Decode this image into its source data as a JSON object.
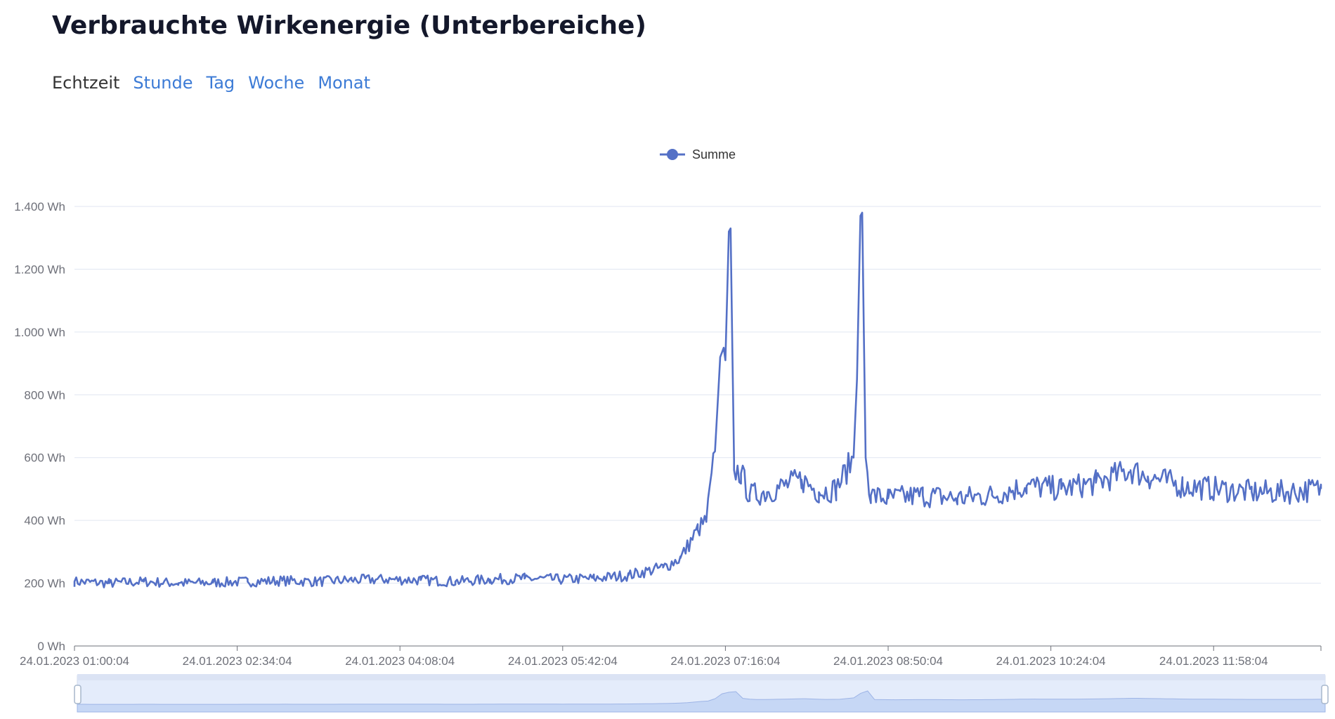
{
  "header": {
    "title": "Verbrauchte Wirkenergie (Unterbereiche)"
  },
  "tabs": [
    {
      "label": "Echtzeit",
      "active": true
    },
    {
      "label": "Stunde",
      "active": false
    },
    {
      "label": "Tag",
      "active": false
    },
    {
      "label": "Woche",
      "active": false
    },
    {
      "label": "Monat",
      "active": false
    }
  ],
  "colors": {
    "series": "#5470c6",
    "link": "#3c7bd6",
    "title": "#14182b"
  },
  "chart_data": {
    "type": "line",
    "title": "",
    "xlabel": "",
    "ylabel": "",
    "ylim": [
      0,
      1400
    ],
    "y_ticks": [
      "0 Wh",
      "200 Wh",
      "400 Wh",
      "600 Wh",
      "800 Wh",
      "1.000 Wh",
      "1.200 Wh",
      "1.400 Wh"
    ],
    "y_tick_values": [
      0,
      200,
      400,
      600,
      800,
      1000,
      1200,
      1400
    ],
    "x_range": [
      "24.01.2023 01:00:04",
      "24.01.2023 13:00:04"
    ],
    "x_ticks": [
      "24.01.2023 01:00:04",
      "24.01.2023 02:34:04",
      "24.01.2023 04:08:04",
      "24.01.2023 05:42:04",
      "24.01.2023 07:16:04",
      "24.01.2023 08:50:04",
      "24.01.2023 10:24:04",
      "24.01.2023 11:58:04"
    ],
    "grid": true,
    "legend_position": "top-center",
    "data_zoom_slider": true,
    "series": [
      {
        "name": "Summe",
        "points": [
          [
            "01:00",
            205
          ],
          [
            "01:20",
            200
          ],
          [
            "01:40",
            205
          ],
          [
            "02:00",
            200
          ],
          [
            "02:20",
            202
          ],
          [
            "02:40",
            205
          ],
          [
            "03:00",
            208
          ],
          [
            "03:20",
            205
          ],
          [
            "03:40",
            210
          ],
          [
            "04:00",
            212
          ],
          [
            "04:20",
            210
          ],
          [
            "04:40",
            205
          ],
          [
            "05:00",
            212
          ],
          [
            "05:20",
            215
          ],
          [
            "05:40",
            212
          ],
          [
            "06:00",
            215
          ],
          [
            "06:20",
            225
          ],
          [
            "06:40",
            250
          ],
          [
            "06:50",
            280
          ],
          [
            "07:00",
            370
          ],
          [
            "07:05",
            400
          ],
          [
            "07:10",
            620
          ],
          [
            "07:13",
            920
          ],
          [
            "07:15",
            950
          ],
          [
            "07:16",
            910
          ],
          [
            "07:18",
            1320
          ],
          [
            "07:19",
            1330
          ],
          [
            "07:21",
            560
          ],
          [
            "07:25",
            550
          ],
          [
            "07:30",
            480
          ],
          [
            "07:40",
            490
          ],
          [
            "07:50",
            510
          ],
          [
            "08:00",
            530
          ],
          [
            "08:10",
            490
          ],
          [
            "08:20",
            500
          ],
          [
            "08:30",
            600
          ],
          [
            "08:32",
            850
          ],
          [
            "08:34",
            1370
          ],
          [
            "08:35",
            1380
          ],
          [
            "08:37",
            600
          ],
          [
            "08:40",
            480
          ],
          [
            "08:50",
            470
          ],
          [
            "09:10",
            480
          ],
          [
            "09:30",
            470
          ],
          [
            "09:50",
            480
          ],
          [
            "10:10",
            510
          ],
          [
            "10:30",
            500
          ],
          [
            "10:50",
            520
          ],
          [
            "11:10",
            560
          ],
          [
            "11:20",
            540
          ],
          [
            "11:40",
            510
          ],
          [
            "12:00",
            500
          ],
          [
            "12:20",
            490
          ],
          [
            "12:40",
            490
          ],
          [
            "13:00",
            500
          ]
        ]
      }
    ]
  }
}
